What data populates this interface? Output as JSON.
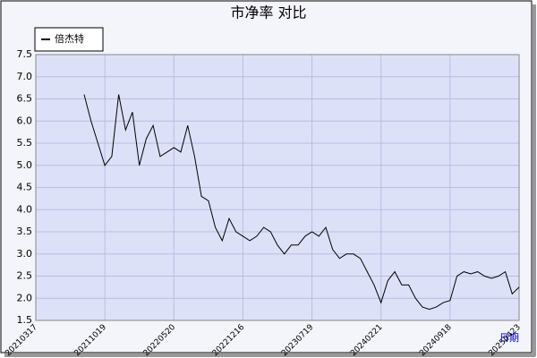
{
  "chart_data": {
    "type": "line",
    "title": "市净率  对比",
    "x_label": "日期",
    "categories": [
      "20210317",
      null,
      null,
      null,
      null,
      null,
      null,
      null,
      null,
      null,
      "20211019",
      null,
      null,
      null,
      null,
      null,
      null,
      null,
      null,
      null,
      "20220520",
      null,
      null,
      null,
      null,
      null,
      null,
      null,
      null,
      null,
      "20221216",
      null,
      null,
      null,
      null,
      null,
      null,
      null,
      null,
      null,
      "20230719",
      null,
      null,
      null,
      null,
      null,
      null,
      null,
      null,
      null,
      "20240221",
      null,
      null,
      null,
      null,
      null,
      null,
      null,
      null,
      null,
      "20240918",
      null,
      null,
      null,
      null,
      null,
      null,
      null,
      null,
      null,
      "20250423"
    ],
    "series": [
      {
        "name": "倍杰特",
        "color": "#000000",
        "values": [
          null,
          null,
          null,
          null,
          null,
          null,
          null,
          6.6,
          6.0,
          5.5,
          5.0,
          5.2,
          6.6,
          5.8,
          6.2,
          5.0,
          5.6,
          5.9,
          5.2,
          5.3,
          5.4,
          5.3,
          5.9,
          5.2,
          4.3,
          4.2,
          3.6,
          3.3,
          3.8,
          3.5,
          3.4,
          3.3,
          3.4,
          3.6,
          3.5,
          3.2,
          3.0,
          3.2,
          3.2,
          3.4,
          3.5,
          3.4,
          3.6,
          3.1,
          2.9,
          3.0,
          3.0,
          2.9,
          2.6,
          2.3,
          1.9,
          2.4,
          2.6,
          2.3,
          2.3,
          2.0,
          1.8,
          1.75,
          1.8,
          1.9,
          1.95,
          2.5,
          2.6,
          2.55,
          2.6,
          2.5,
          2.45,
          2.5,
          2.6,
          2.1,
          2.25
        ]
      }
    ],
    "ylim": [
      1.5,
      7.5
    ],
    "yticks": [
      1.5,
      {
        "value": 2,
        "label": "2.0"
      },
      2.5,
      {
        "value": 3,
        "label": "3.0"
      },
      3.5,
      {
        "value": 4,
        "label": "4.0"
      },
      4.5,
      {
        "value": 5,
        "label": "5.0"
      },
      5.5,
      {
        "value": 6,
        "label": "6.0"
      },
      6.5,
      {
        "value": 7,
        "label": "7.0"
      },
      7.5
    ],
    "grid": true
  }
}
